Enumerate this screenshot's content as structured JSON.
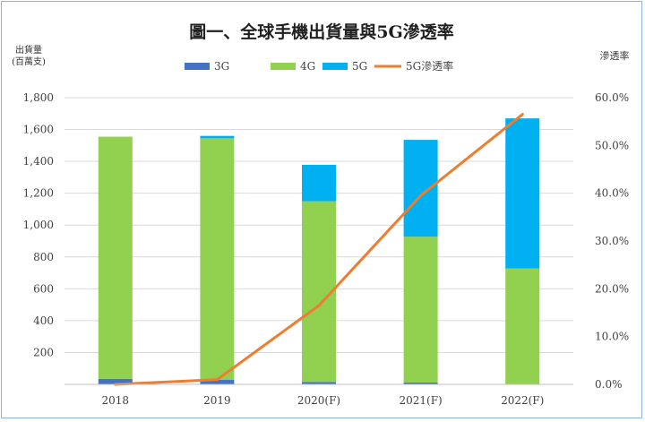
{
  "chart_data": {
    "type": "bar",
    "stacked": true,
    "title": "圖一、全球手機出貨量與5G滲透率",
    "ylabel_left": [
      "出貨量",
      "(百萬支)"
    ],
    "ylabel_right": "滲透率",
    "categories": [
      "2018",
      "2019",
      "2020(F)",
      "2021(F)",
      "2022(F)"
    ],
    "series": [
      {
        "name": "3G",
        "type": "bar",
        "axis": "left",
        "color": "#4472c4",
        "values": [
          35,
          28,
          15,
          12,
          0
        ]
      },
      {
        "name": "4G",
        "type": "bar",
        "axis": "left",
        "color": "#92d050",
        "values": [
          1520,
          1517,
          1135,
          915,
          728
        ]
      },
      {
        "name": "5G",
        "type": "bar",
        "axis": "left",
        "color": "#00b0f0",
        "values": [
          0,
          15,
          228,
          608,
          942
        ]
      },
      {
        "name": "5G滲透率",
        "type": "line",
        "axis": "right",
        "color": "#ed7d31",
        "values": [
          0.0,
          1.0,
          16.5,
          39.5,
          56.5
        ]
      }
    ],
    "ylim_left": [
      0,
      1800
    ],
    "yticks_left": [
      200,
      400,
      600,
      800,
      1000,
      1200,
      1400,
      1600,
      1800
    ],
    "yticklabels_left": [
      "200",
      "400",
      "600",
      "800",
      "1,000",
      "1,200",
      "1,400",
      "1,600",
      "1,800"
    ],
    "ylim_right": [
      0,
      60
    ],
    "yticks_right": [
      0,
      10,
      20,
      30,
      40,
      50,
      60
    ],
    "yticklabels_right": [
      "0.0%",
      "10.0%",
      "20.0%",
      "30.0%",
      "40.0%",
      "50.0%",
      "60.0%"
    ],
    "legend_position": "top"
  }
}
